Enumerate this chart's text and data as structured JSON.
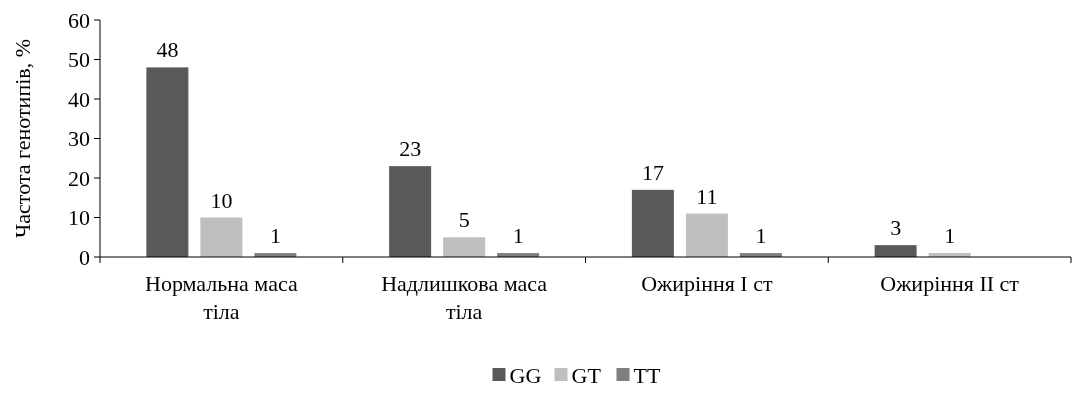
{
  "chart_data": {
    "type": "bar",
    "ylabel": "Частота генотипів, %",
    "categories": [
      "Нормальна маса тіла",
      "Надлишкова маса тіла",
      "Ожиріння І ст",
      "Ожиріння ІІ ст"
    ],
    "series": [
      {
        "name": "GG",
        "color": "#595959",
        "values": [
          48,
          23,
          17,
          3
        ]
      },
      {
        "name": "GT",
        "color": "#bfbfbf",
        "values": [
          10,
          5,
          11,
          1
        ]
      },
      {
        "name": "TT",
        "color": "#7f7f7f",
        "values": [
          1,
          1,
          1,
          null
        ]
      }
    ],
    "ylim": [
      0,
      60
    ],
    "yticks": [
      0,
      10,
      20,
      30,
      40,
      50,
      60
    ],
    "grid": false,
    "legend": "bottom",
    "data_labels": true
  }
}
